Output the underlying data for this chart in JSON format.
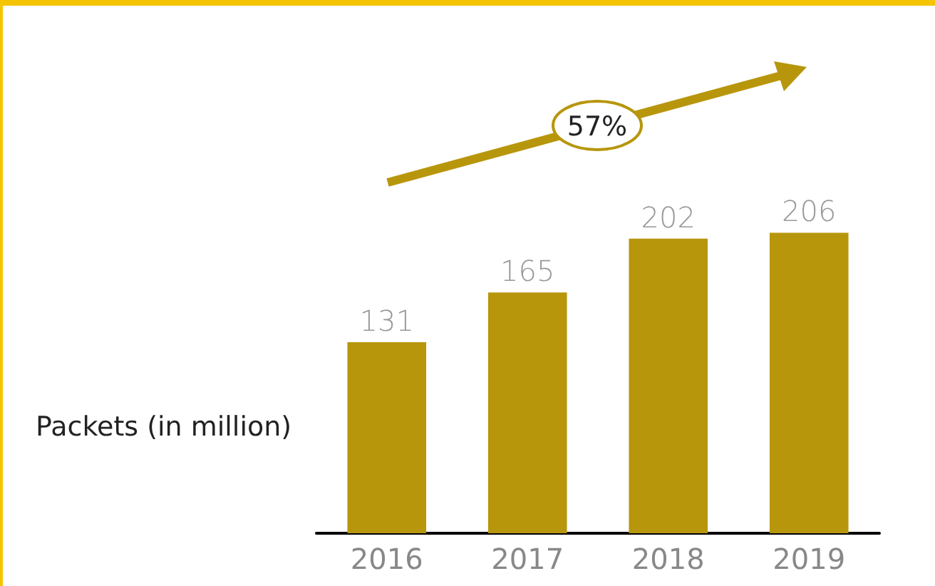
{
  "chart_data": {
    "type": "bar",
    "ylabel": "Packets (in million)",
    "categories": [
      "2016",
      "2017",
      "2018",
      "2019"
    ],
    "values": [
      131,
      165,
      202,
      206
    ],
    "color": "#b8960c",
    "data_labels": true,
    "annotations": [
      "57%"
    ]
  }
}
